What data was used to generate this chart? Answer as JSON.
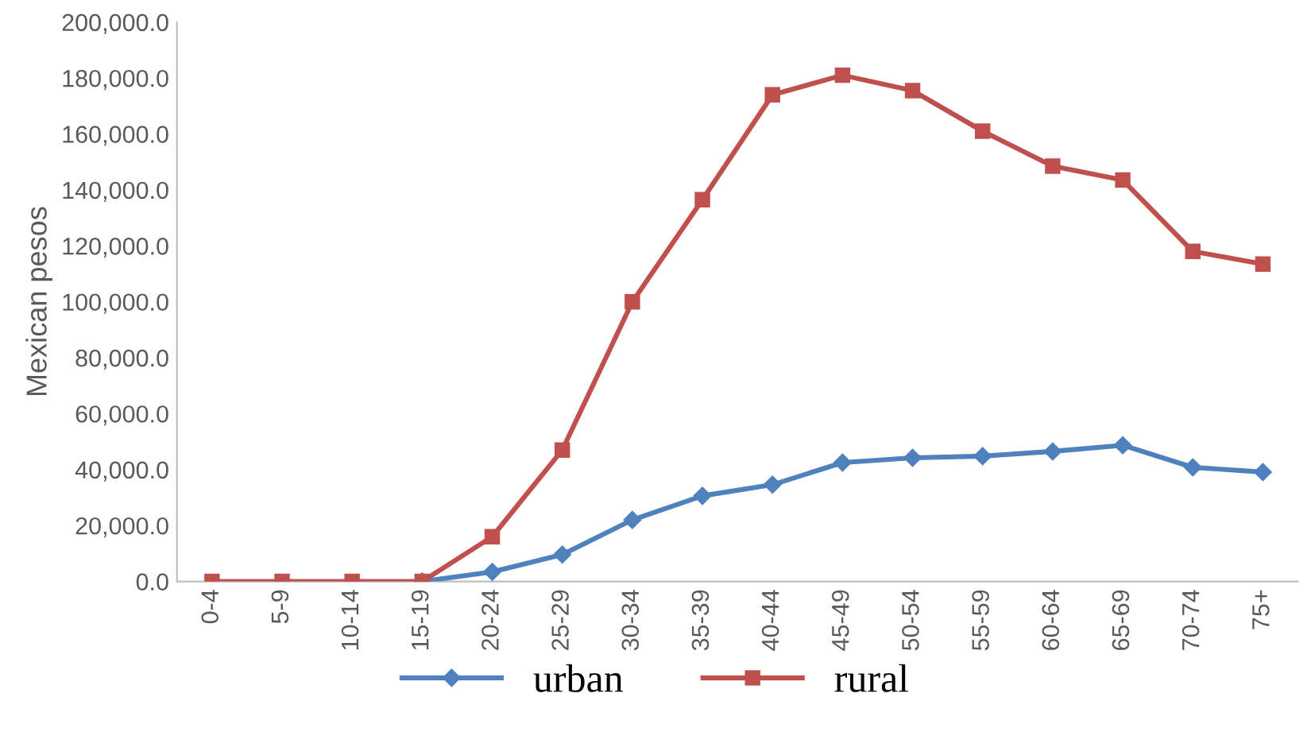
{
  "chart_data": {
    "type": "line",
    "ylabel": "Mexican pesos",
    "categories": [
      "0-4",
      "5-9",
      "10-14",
      "15-19",
      "20-24",
      "25-29",
      "30-34",
      "35-39",
      "40-44",
      "45-49",
      "50-54",
      "55-59",
      "60-64",
      "65-69",
      "70-74",
      "75+"
    ],
    "series": [
      {
        "name": "urban",
        "color": "#4f81bd",
        "marker": "diamond",
        "values": [
          null,
          null,
          null,
          0,
          3400,
          9600,
          22000,
          30600,
          34600,
          42500,
          44200,
          44800,
          46500,
          48700,
          40800,
          39100
        ]
      },
      {
        "name": "rural",
        "color": "#c0504d",
        "marker": "square",
        "values": [
          0,
          0,
          0,
          0,
          16000,
          47000,
          100000,
          136500,
          174000,
          181000,
          175500,
          161000,
          148500,
          143500,
          118000,
          113500
        ]
      }
    ],
    "ylim": [
      0,
      200000
    ],
    "yticks": [
      {
        "value": 0,
        "label": "0.0"
      },
      {
        "value": 20000,
        "label": "20,000.0"
      },
      {
        "value": 40000,
        "label": "40,000.0"
      },
      {
        "value": 60000,
        "label": "60,000.0"
      },
      {
        "value": 80000,
        "label": "80,000.0"
      },
      {
        "value": 100000,
        "label": "100,000.0"
      },
      {
        "value": 120000,
        "label": "120,000.0"
      },
      {
        "value": 140000,
        "label": "140,000.0"
      },
      {
        "value": 160000,
        "label": "160,000.0"
      },
      {
        "value": 180000,
        "label": "180,000.0"
      },
      {
        "value": 200000,
        "label": "200,000.0"
      }
    ],
    "grid": false,
    "legend": "bottom",
    "line_style": "solid"
  }
}
